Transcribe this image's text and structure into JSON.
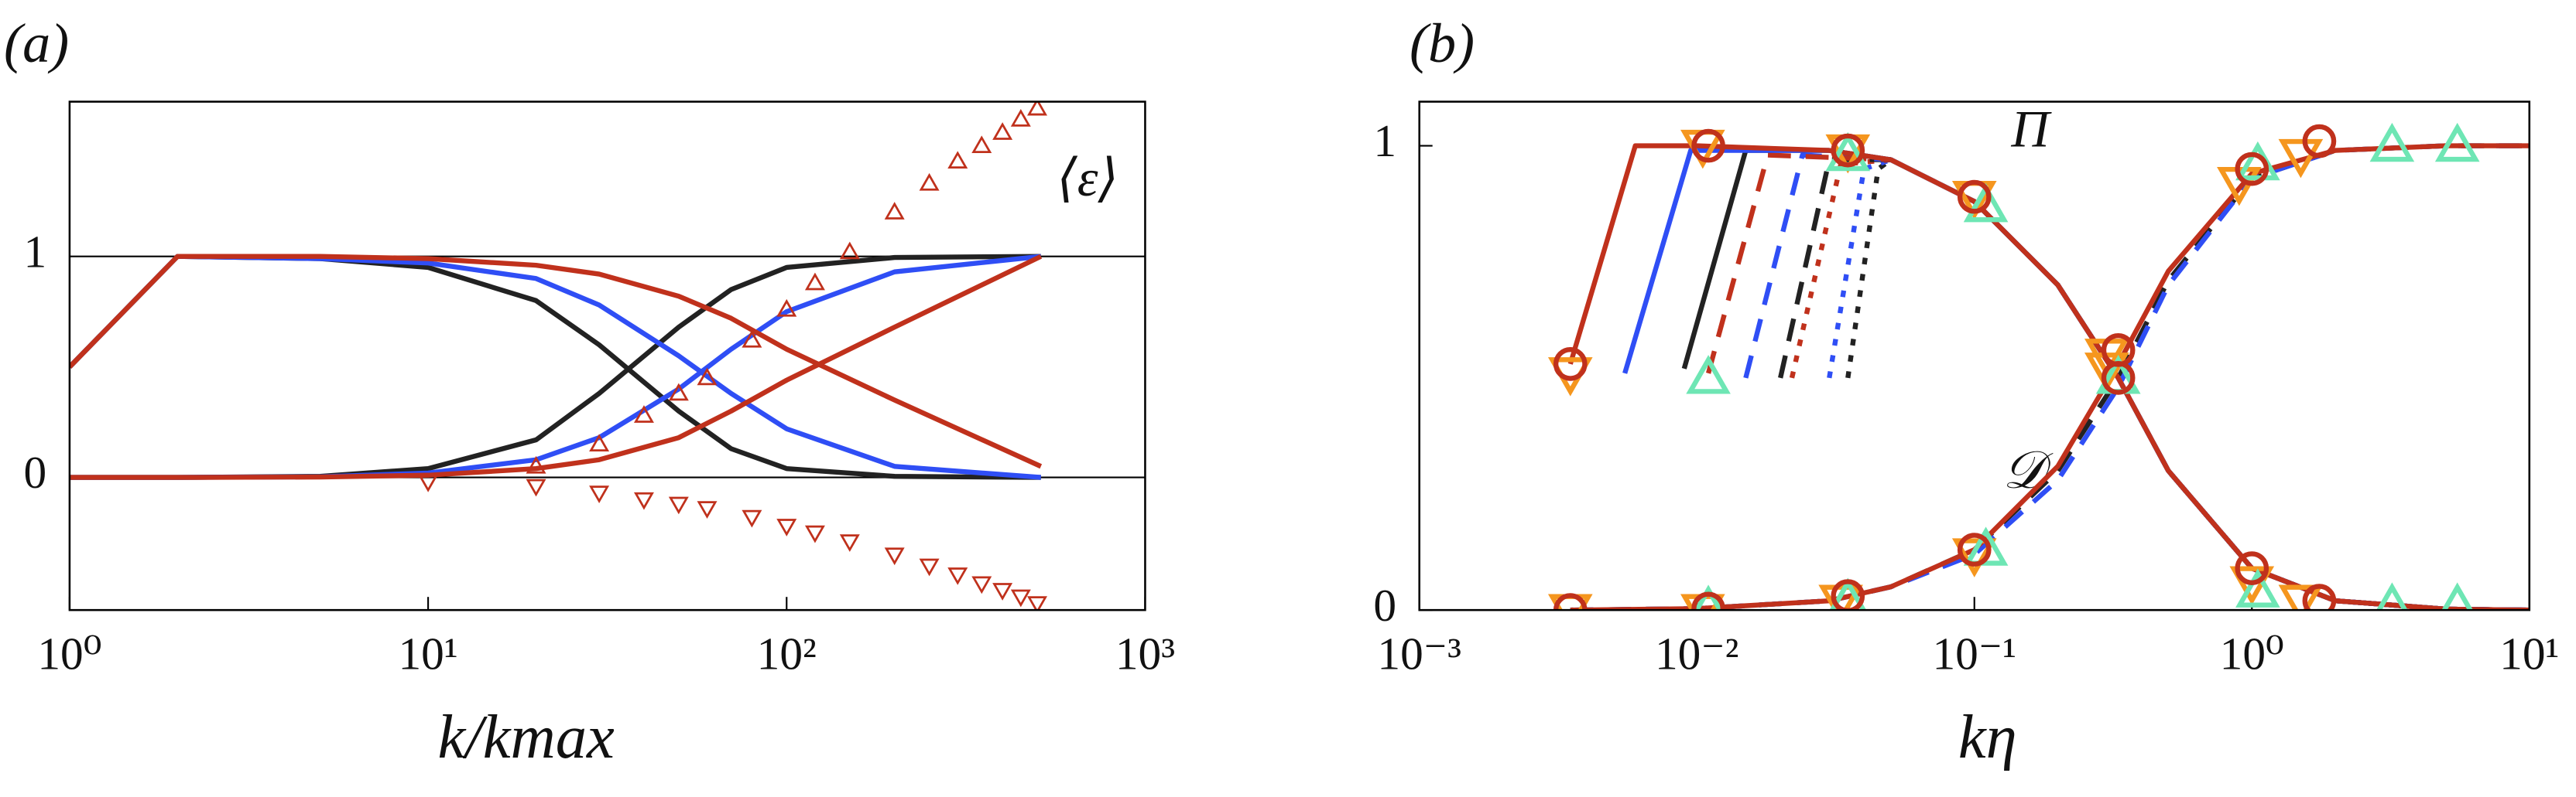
{
  "chart_data": [
    {
      "type": "line",
      "label": "(a)",
      "xlabel": "k/kmax",
      "annotations": [
        "⟨ε⟩"
      ],
      "xscale": "log",
      "xlim": [
        1,
        1000
      ],
      "xticks": [
        {
          "value": 1,
          "label": "10⁰"
        },
        {
          "value": 10,
          "label": "10¹"
        },
        {
          "value": 100,
          "label": "10²"
        },
        {
          "value": 1000,
          "label": "10³"
        }
      ],
      "ylim": [
        -0.6,
        1.7
      ],
      "yticks": [
        0,
        1
      ],
      "grid": true,
      "series": [
        {
          "color": "#222222",
          "style": "solid",
          "x": [
            1,
            2,
            5,
            10,
            20,
            30,
            50,
            70,
            100,
            200,
            512
          ],
          "values": [
            0.5,
            1,
            0.99,
            0.95,
            0.8,
            0.6,
            0.3,
            0.13,
            0.04,
            0.005,
            0
          ]
        },
        {
          "color": "#222222",
          "style": "solid",
          "x": [
            1,
            2,
            5,
            10,
            20,
            30,
            50,
            70,
            100,
            200,
            512
          ],
          "values": [
            0,
            0,
            0.005,
            0.04,
            0.17,
            0.38,
            0.68,
            0.85,
            0.95,
            0.995,
            1
          ]
        },
        {
          "color": "#2f4ef5",
          "style": "solid",
          "x": [
            1,
            2,
            5,
            10,
            20,
            30,
            50,
            70,
            100,
            200,
            512
          ],
          "values": [
            0.5,
            1,
            0.99,
            0.97,
            0.9,
            0.78,
            0.55,
            0.38,
            0.22,
            0.05,
            0
          ]
        },
        {
          "color": "#2f4ef5",
          "style": "solid",
          "x": [
            1,
            2,
            5,
            10,
            20,
            30,
            50,
            70,
            100,
            200,
            512
          ],
          "values": [
            0,
            0,
            0.003,
            0.02,
            0.08,
            0.18,
            0.4,
            0.58,
            0.75,
            0.93,
            1
          ]
        },
        {
          "color": "#c0311c",
          "style": "solid",
          "x": [
            1,
            2,
            5,
            10,
            20,
            30,
            50,
            70,
            100,
            200,
            512
          ],
          "values": [
            0.5,
            1,
            1,
            0.99,
            0.96,
            0.92,
            0.82,
            0.72,
            0.58,
            0.35,
            0.05
          ]
        },
        {
          "color": "#c0311c",
          "style": "solid",
          "x": [
            1,
            2,
            5,
            10,
            20,
            30,
            50,
            70,
            100,
            200,
            512
          ],
          "values": [
            0,
            0,
            0.002,
            0.01,
            0.04,
            0.08,
            0.18,
            0.3,
            0.44,
            0.68,
            1
          ]
        },
        {
          "color": "#c0311c",
          "style": "markers",
          "marker": "triangle-up",
          "x": [
            10,
            20,
            30,
            40,
            50,
            60,
            80,
            100,
            120,
            150,
            200,
            250,
            300,
            350,
            400,
            450,
            500
          ],
          "values": [
            null,
            0.05,
            0.15,
            0.28,
            0.38,
            0.45,
            0.62,
            0.76,
            0.88,
            1.02,
            1.2,
            1.33,
            1.43,
            1.5,
            1.56,
            1.62,
            1.67
          ]
        },
        {
          "color": "#c0311c",
          "style": "markers",
          "marker": "triangle-down",
          "x": [
            10,
            20,
            30,
            40,
            50,
            60,
            80,
            100,
            120,
            150,
            200,
            250,
            300,
            350,
            400,
            450,
            500
          ],
          "values": [
            -0.02,
            -0.04,
            -0.07,
            -0.1,
            -0.12,
            -0.14,
            -0.18,
            -0.22,
            -0.25,
            -0.29,
            -0.35,
            -0.4,
            -0.44,
            -0.48,
            -0.51,
            -0.54,
            -0.57
          ]
        }
      ]
    },
    {
      "type": "line",
      "label": "(b)",
      "xlabel": "kη",
      "annotations": [
        "Π",
        "𝒟"
      ],
      "xscale": "log",
      "xlim": [
        0.001,
        10
      ],
      "xticks": [
        {
          "value": 0.001,
          "label": "10⁻³"
        },
        {
          "value": 0.01,
          "label": "10⁻²"
        },
        {
          "value": 0.1,
          "label": "10⁻¹"
        },
        {
          "value": 1,
          "label": "10⁰"
        },
        {
          "value": 10,
          "label": "10¹"
        }
      ],
      "ylim": [
        0,
        1.095
      ],
      "yticks": [
        0,
        1
      ],
      "grid": false,
      "series": [
        {
          "color": "#222222",
          "style": "dotted",
          "x": [
            0.035,
            0.045,
            0.05,
            0.1,
            0.2,
            0.33,
            0.5,
            1,
            2,
            5,
            10
          ],
          "values": [
            0.5,
            0.95,
            0.97,
            0.88,
            0.7,
            0.5,
            0.3,
            0.09,
            0.02,
            0.002,
            0
          ]
        },
        {
          "color": "#2f4ef5",
          "style": "dotted",
          "x": [
            0.03,
            0.04,
            0.05,
            0.1,
            0.2,
            0.33,
            0.5,
            1,
            2,
            5,
            10
          ],
          "values": [
            0.5,
            0.95,
            0.97,
            0.88,
            0.7,
            0.5,
            0.3,
            0.09,
            0.02,
            0.002,
            0
          ]
        },
        {
          "color": "#c0311c",
          "style": "dotted",
          "x": [
            0.022,
            0.033,
            0.05,
            0.1,
            0.2,
            0.33,
            0.5,
            1,
            2,
            5,
            10
          ],
          "values": [
            0.5,
            0.96,
            0.97,
            0.88,
            0.7,
            0.5,
            0.3,
            0.09,
            0.02,
            0.002,
            0
          ]
        },
        {
          "color": "#222222",
          "style": "dashed",
          "x": [
            0.02,
            0.03,
            0.05,
            0.1,
            0.2,
            0.33,
            0.5,
            1,
            2,
            5,
            10
          ],
          "values": [
            0.5,
            0.97,
            0.97,
            0.88,
            0.7,
            0.5,
            0.3,
            0.09,
            0.02,
            0.002,
            0
          ]
        },
        {
          "color": "#2f4ef5",
          "style": "dashed",
          "x": [
            0.015,
            0.024,
            0.05,
            0.1,
            0.2,
            0.33,
            0.5,
            1,
            2,
            5,
            10
          ],
          "values": [
            0.5,
            0.98,
            0.97,
            0.88,
            0.7,
            0.5,
            0.3,
            0.09,
            0.02,
            0.002,
            0
          ]
        },
        {
          "color": "#c0311c",
          "style": "dashed",
          "x": [
            0.011,
            0.018,
            0.05,
            0.1,
            0.2,
            0.33,
            0.5,
            1,
            2,
            5,
            10
          ],
          "values": [
            0.51,
            0.98,
            0.97,
            0.88,
            0.7,
            0.5,
            0.3,
            0.09,
            0.02,
            0.002,
            0
          ]
        },
        {
          "color": "#222222",
          "style": "solid",
          "x": [
            0.009,
            0.015,
            0.03,
            0.05,
            0.1,
            0.2,
            0.33,
            0.5,
            1,
            2,
            5,
            10
          ],
          "values": [
            0.52,
            0.99,
            0.99,
            0.97,
            0.88,
            0.7,
            0.5,
            0.3,
            0.09,
            0.02,
            0.002,
            0
          ]
        },
        {
          "color": "#2f4ef5",
          "style": "solid",
          "x": [
            0.0055,
            0.0095,
            0.03,
            0.05,
            0.1,
            0.2,
            0.33,
            0.5,
            1,
            2,
            5,
            10
          ],
          "values": [
            0.51,
            0.99,
            0.99,
            0.97,
            0.88,
            0.7,
            0.5,
            0.3,
            0.09,
            0.02,
            0.002,
            0
          ]
        },
        {
          "color": "#222222",
          "style": "dashed",
          "x": [
            0.0035,
            0.01,
            0.03,
            0.05,
            0.1,
            0.2,
            0.33,
            0.5,
            1,
            2,
            5,
            10
          ],
          "values": [
            0,
            0.003,
            0.02,
            0.05,
            0.13,
            0.3,
            0.5,
            0.71,
            0.93,
            0.99,
            1,
            1
          ]
        },
        {
          "color": "#2f4ef5",
          "style": "dashed",
          "x": [
            0.0035,
            0.01,
            0.03,
            0.05,
            0.1,
            0.2,
            0.33,
            0.5,
            1,
            2,
            5,
            10
          ],
          "values": [
            0,
            0.003,
            0.02,
            0.05,
            0.12,
            0.28,
            0.48,
            0.7,
            0.93,
            0.99,
            1,
            1
          ]
        },
        {
          "color": "#c0311c",
          "style": "solid",
          "x": [
            0.0035,
            0.006,
            0.01,
            0.03,
            0.05,
            0.1,
            0.2,
            0.33,
            0.5,
            1,
            2,
            5,
            10
          ],
          "values": [
            0.53,
            1,
            1,
            0.99,
            0.97,
            0.88,
            0.7,
            0.5,
            0.3,
            0.09,
            0.02,
            0.002,
            0
          ]
        },
        {
          "color": "#c0311c",
          "style": "solid",
          "x": [
            0.0035,
            0.01,
            0.03,
            0.05,
            0.1,
            0.2,
            0.33,
            0.5,
            1,
            2,
            5,
            10
          ],
          "values": [
            0,
            0.003,
            0.02,
            0.05,
            0.13,
            0.31,
            0.53,
            0.73,
            0.94,
            0.99,
            1,
            1
          ]
        },
        {
          "color": "#f5961e",
          "style": "markers",
          "marker": "triangle-down",
          "x": [
            0.0035,
            0.0105,
            0.035,
            0.1,
            0.3,
            1,
            1.5
          ],
          "values": [
            0.51,
            1,
            0.99,
            0.89,
            0.52,
            0.06,
            0.02
          ]
        },
        {
          "color": "#f5961e",
          "style": "markers",
          "marker": "triangle-down",
          "x": [
            0.0035,
            0.0105,
            0.033,
            0.1,
            0.3,
            0.9,
            1.5
          ],
          "values": [
            0,
            0,
            0.02,
            0.12,
            0.55,
            0.92,
            0.98
          ]
        },
        {
          "color": "#6ee6b4",
          "style": "markers",
          "marker": "triangle-up",
          "x": [
            0.011,
            0.035,
            0.11,
            0.33,
            1.05,
            3.2,
            5.5
          ],
          "values": [
            0.5,
            0.98,
            0.87,
            0.5,
            0.04,
            0.01,
            0.01
          ]
        },
        {
          "color": "#6ee6b4",
          "style": "markers",
          "marker": "triangle-up",
          "x": [
            0.011,
            0.035,
            0.11,
            0.33,
            1.05,
            3.2,
            5.5
          ],
          "values": [
            0.005,
            0.02,
            0.13,
            0.5,
            0.96,
            1,
            1
          ]
        },
        {
          "color": "#c0311c",
          "style": "markers",
          "marker": "circle",
          "x": [
            0.0035,
            0.011,
            0.035,
            0.1,
            0.33,
            1,
            1.75
          ],
          "values": [
            0.53,
            1,
            0.99,
            0.89,
            0.5,
            0.09,
            0.02
          ]
        },
        {
          "color": "#c0311c",
          "style": "markers",
          "marker": "circle",
          "x": [
            0.0035,
            0.011,
            0.035,
            0.1,
            0.33,
            1,
            1.75
          ],
          "values": [
            0,
            0.003,
            0.03,
            0.13,
            0.56,
            0.95,
            1.01
          ]
        }
      ]
    }
  ]
}
